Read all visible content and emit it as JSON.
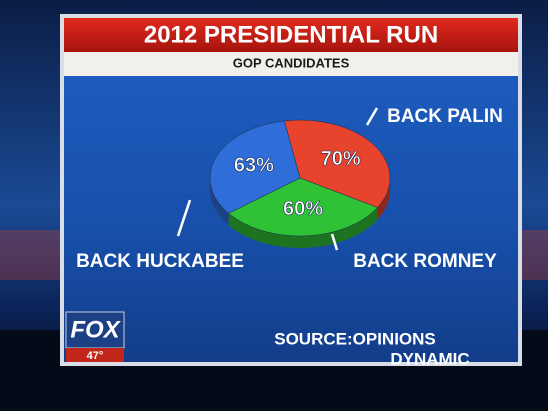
{
  "chart_data": {
    "type": "pie",
    "title": "2012 PRESIDENTIAL RUN",
    "subtitle": "GOP CANDIDATES",
    "categories": [
      "BACK PALIN",
      "BACK ROMNEY",
      "BACK HUCKABEE"
    ],
    "values": [
      70,
      60,
      63
    ],
    "value_labels": [
      "70%",
      "60%",
      "63%"
    ],
    "colors": [
      "#e8432c",
      "#2fc236",
      "#2f6ed8"
    ],
    "source": [
      "SOURCE:OPINIONS",
      "DYNAMIC"
    ]
  },
  "overlay": {
    "logo": "FOX",
    "temperature": "47°"
  }
}
